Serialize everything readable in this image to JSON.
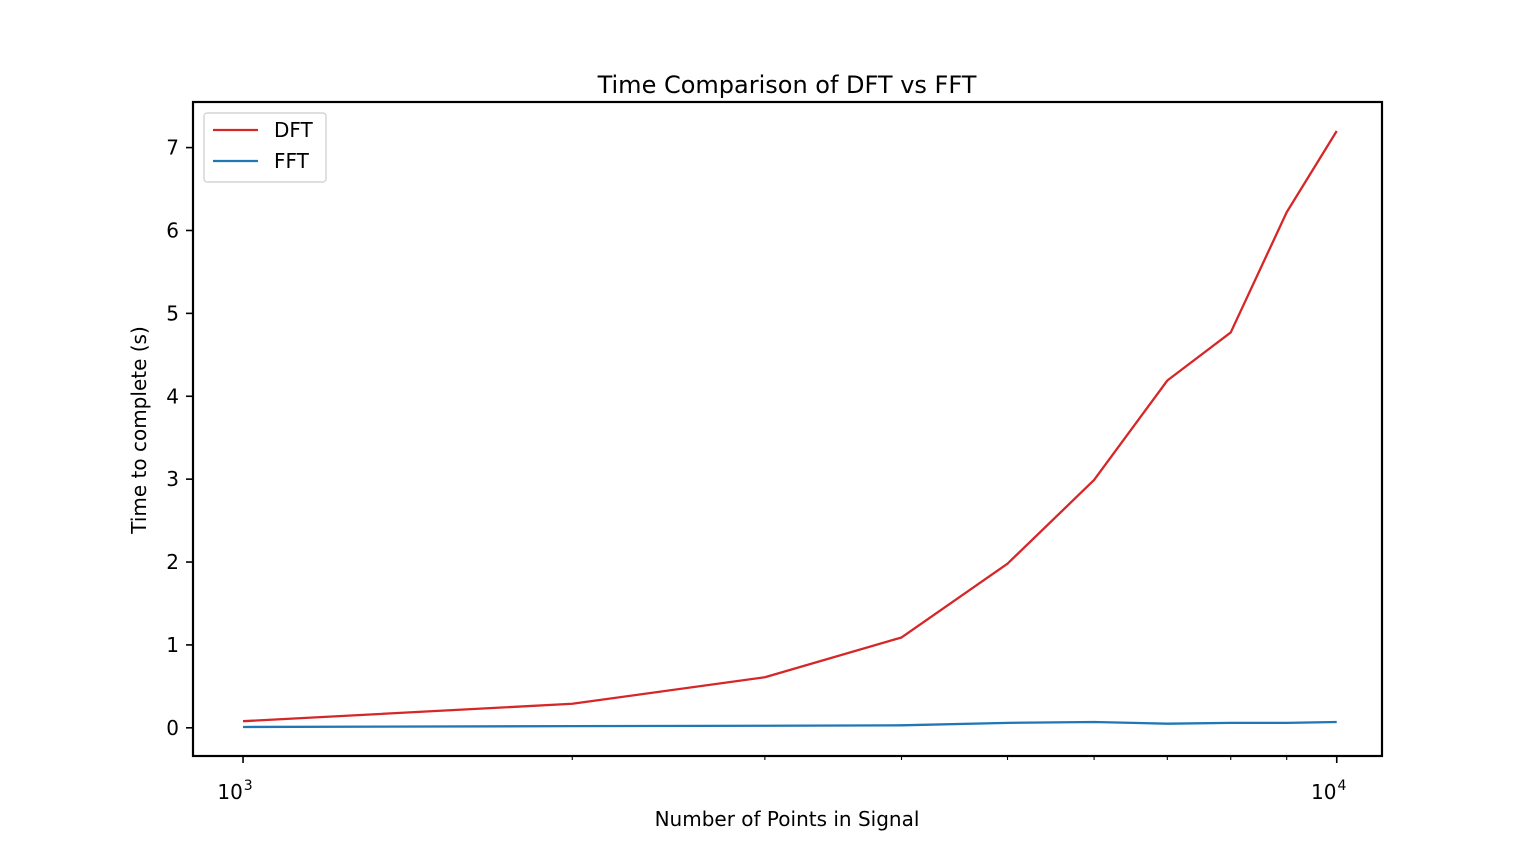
{
  "chart_data": {
    "type": "line",
    "title": "Time Comparison of DFT vs FFT",
    "xlabel": "Number of Points in Signal",
    "ylabel": "Time to complete (s)",
    "xscale": "log",
    "xlim": [
      900,
      11000
    ],
    "ylim": [
      -0.34,
      7.55
    ],
    "x": [
      1000,
      2000,
      3000,
      4000,
      5000,
      6000,
      7000,
      8000,
      9000,
      10000
    ],
    "xticks": [
      {
        "base": "10",
        "exp": "3",
        "value": 1000
      },
      {
        "base": "10",
        "exp": "4",
        "value": 10000
      }
    ],
    "yticks": [
      0,
      1,
      2,
      3,
      4,
      5,
      6,
      7
    ],
    "legend_position": "upper left",
    "grid": false,
    "series": [
      {
        "name": "DFT",
        "color": "#d62728",
        "values": [
          0.08,
          0.29,
          0.61,
          1.09,
          1.98,
          2.99,
          4.19,
          4.77,
          6.22,
          7.2
        ]
      },
      {
        "name": "FFT",
        "color": "#1f77b4",
        "values": [
          0.01,
          0.02,
          0.025,
          0.03,
          0.06,
          0.07,
          0.05,
          0.06,
          0.06,
          0.07
        ]
      }
    ]
  }
}
